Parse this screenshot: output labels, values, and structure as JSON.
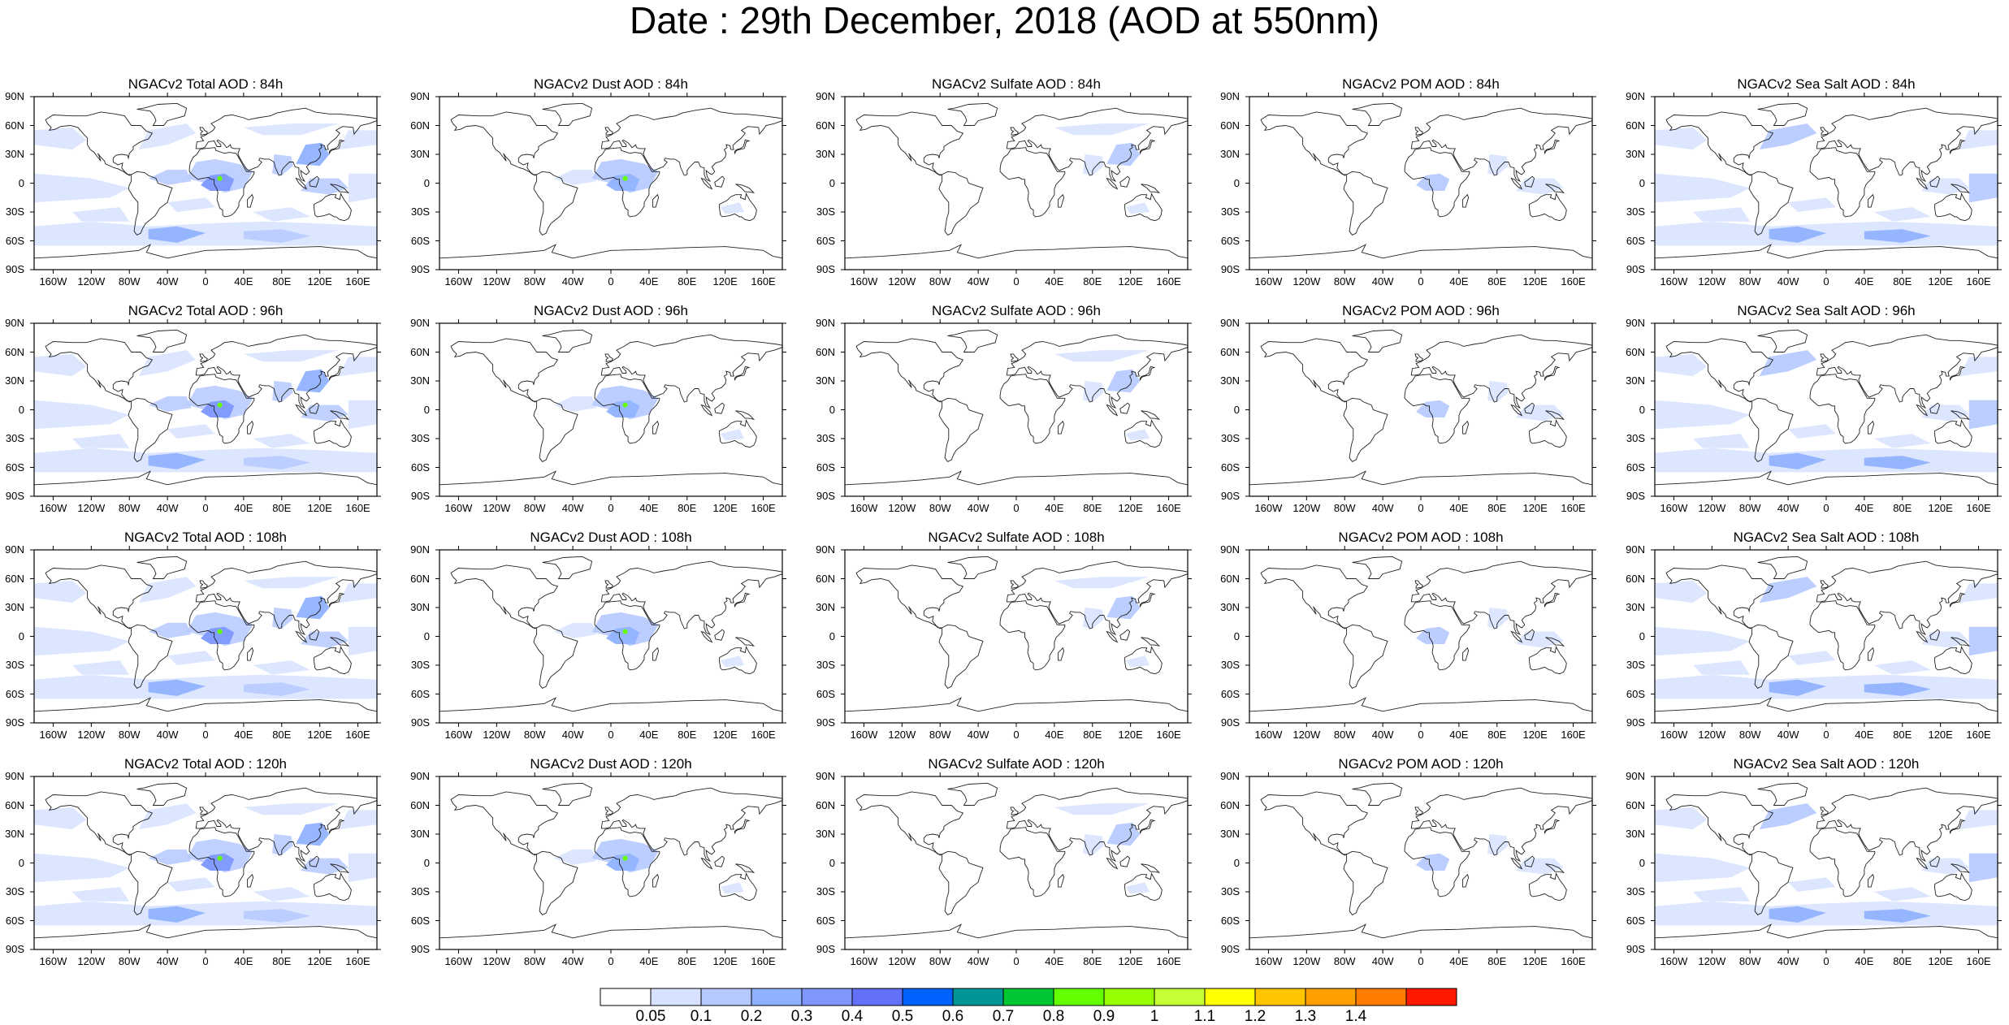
{
  "title": "Date : 29th December, 2018 (AOD at 550nm)",
  "panel_titles": [
    [
      "NGACv2 Total AOD : 84h",
      "NGACv2 Dust AOD : 84h",
      "NGACv2 Sulfate AOD : 84h",
      "NGACv2 POM AOD : 84h",
      "NGACv2 Sea Salt AOD : 84h"
    ],
    [
      "NGACv2 Total AOD : 96h",
      "NGACv2 Dust AOD : 96h",
      "NGACv2 Sulfate AOD : 96h",
      "NGACv2 POM AOD : 96h",
      "NGACv2 Sea Salt AOD : 96h"
    ],
    [
      "NGACv2 Total AOD : 108h",
      "NGACv2 Dust AOD : 108h",
      "NGACv2 Sulfate AOD : 108h",
      "NGACv2 POM AOD : 108h",
      "NGACv2 Sea Salt AOD : 108h"
    ],
    [
      "NGACv2 Total AOD : 120h",
      "NGACv2 Dust AOD : 120h",
      "NGACv2 Sulfate AOD : 120h",
      "NGACv2 POM AOD : 120h",
      "NGACv2 Sea Salt  AOD : 120h"
    ]
  ],
  "lat_labels": [
    "90N",
    "60N",
    "30N",
    "0",
    "30S",
    "60S",
    "90S"
  ],
  "lon_labels": [
    "160W",
    "120W",
    "80W",
    "40W",
    "0",
    "40E",
    "80E",
    "120E",
    "160E"
  ],
  "colorbar": {
    "levels": [
      "0.05",
      "0.1",
      "0.2",
      "0.3",
      "0.4",
      "0.5",
      "0.6",
      "0.7",
      "0.8",
      "0.9",
      "1",
      "1.1",
      "1.2",
      "1.3",
      "1.4"
    ],
    "colors": [
      "#ffffff",
      "#d6e2ff",
      "#b5c9ff",
      "#8eb2ff",
      "#7f96ff",
      "#6370f8",
      "#0063ff",
      "#009696",
      "#00c633",
      "#63ff00",
      "#96ff00",
      "#c6ff33",
      "#ffff00",
      "#ffc600",
      "#ffa000",
      "#ff7c00",
      "#ff1900"
    ]
  }
}
